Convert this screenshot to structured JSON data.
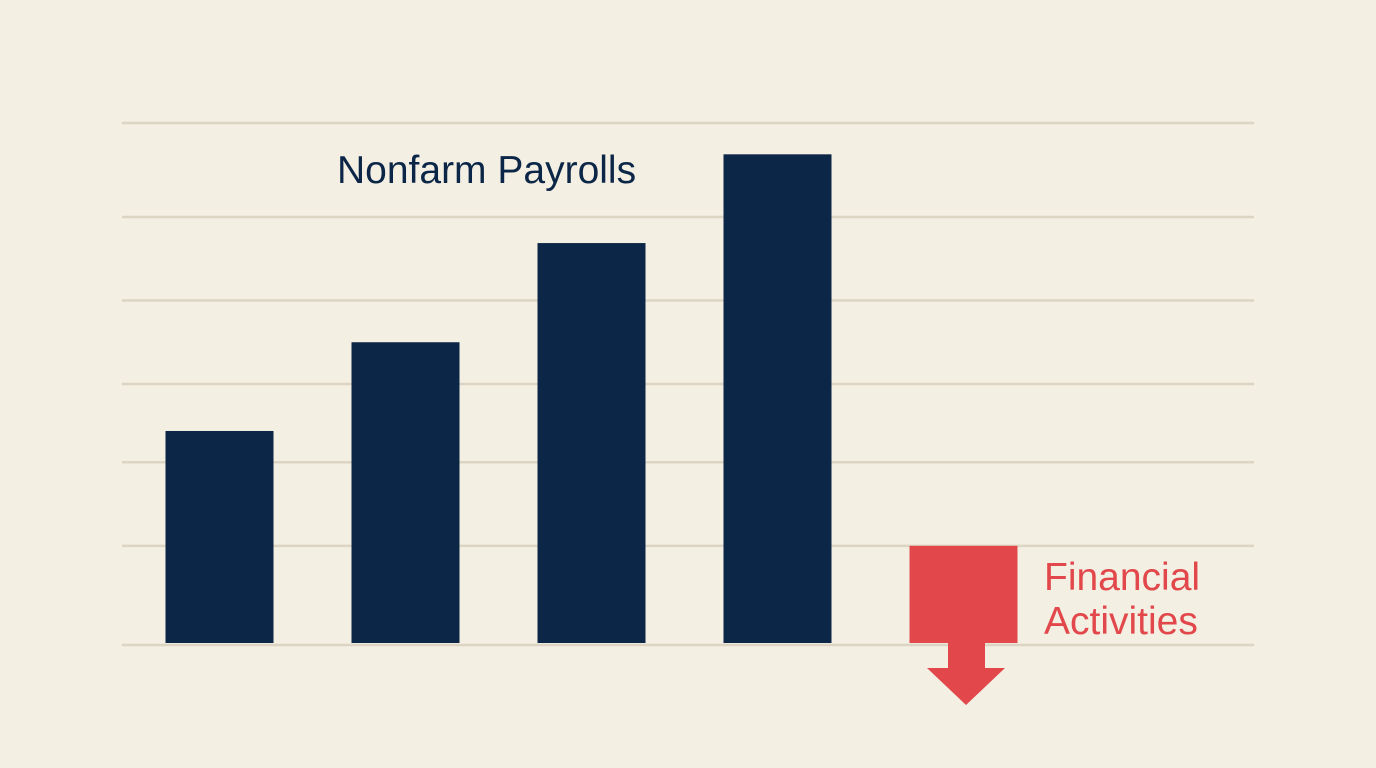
{
  "chart_data": {
    "type": "bar",
    "categories": [
      null,
      null,
      null,
      null,
      null
    ],
    "series": [
      {
        "name": "Nonfarm Payrolls",
        "color": "#0b2646",
        "values": [
          41,
          58,
          77,
          94,
          null
        ]
      },
      {
        "name": "Financial Activities",
        "color": "#e2484b",
        "values": [
          null,
          null,
          null,
          null,
          19
        ]
      }
    ],
    "ylim": [
      0,
      100
    ],
    "yticks": [
      0,
      19,
      35,
      50,
      66,
      82,
      100
    ],
    "grid": true
  }
}
